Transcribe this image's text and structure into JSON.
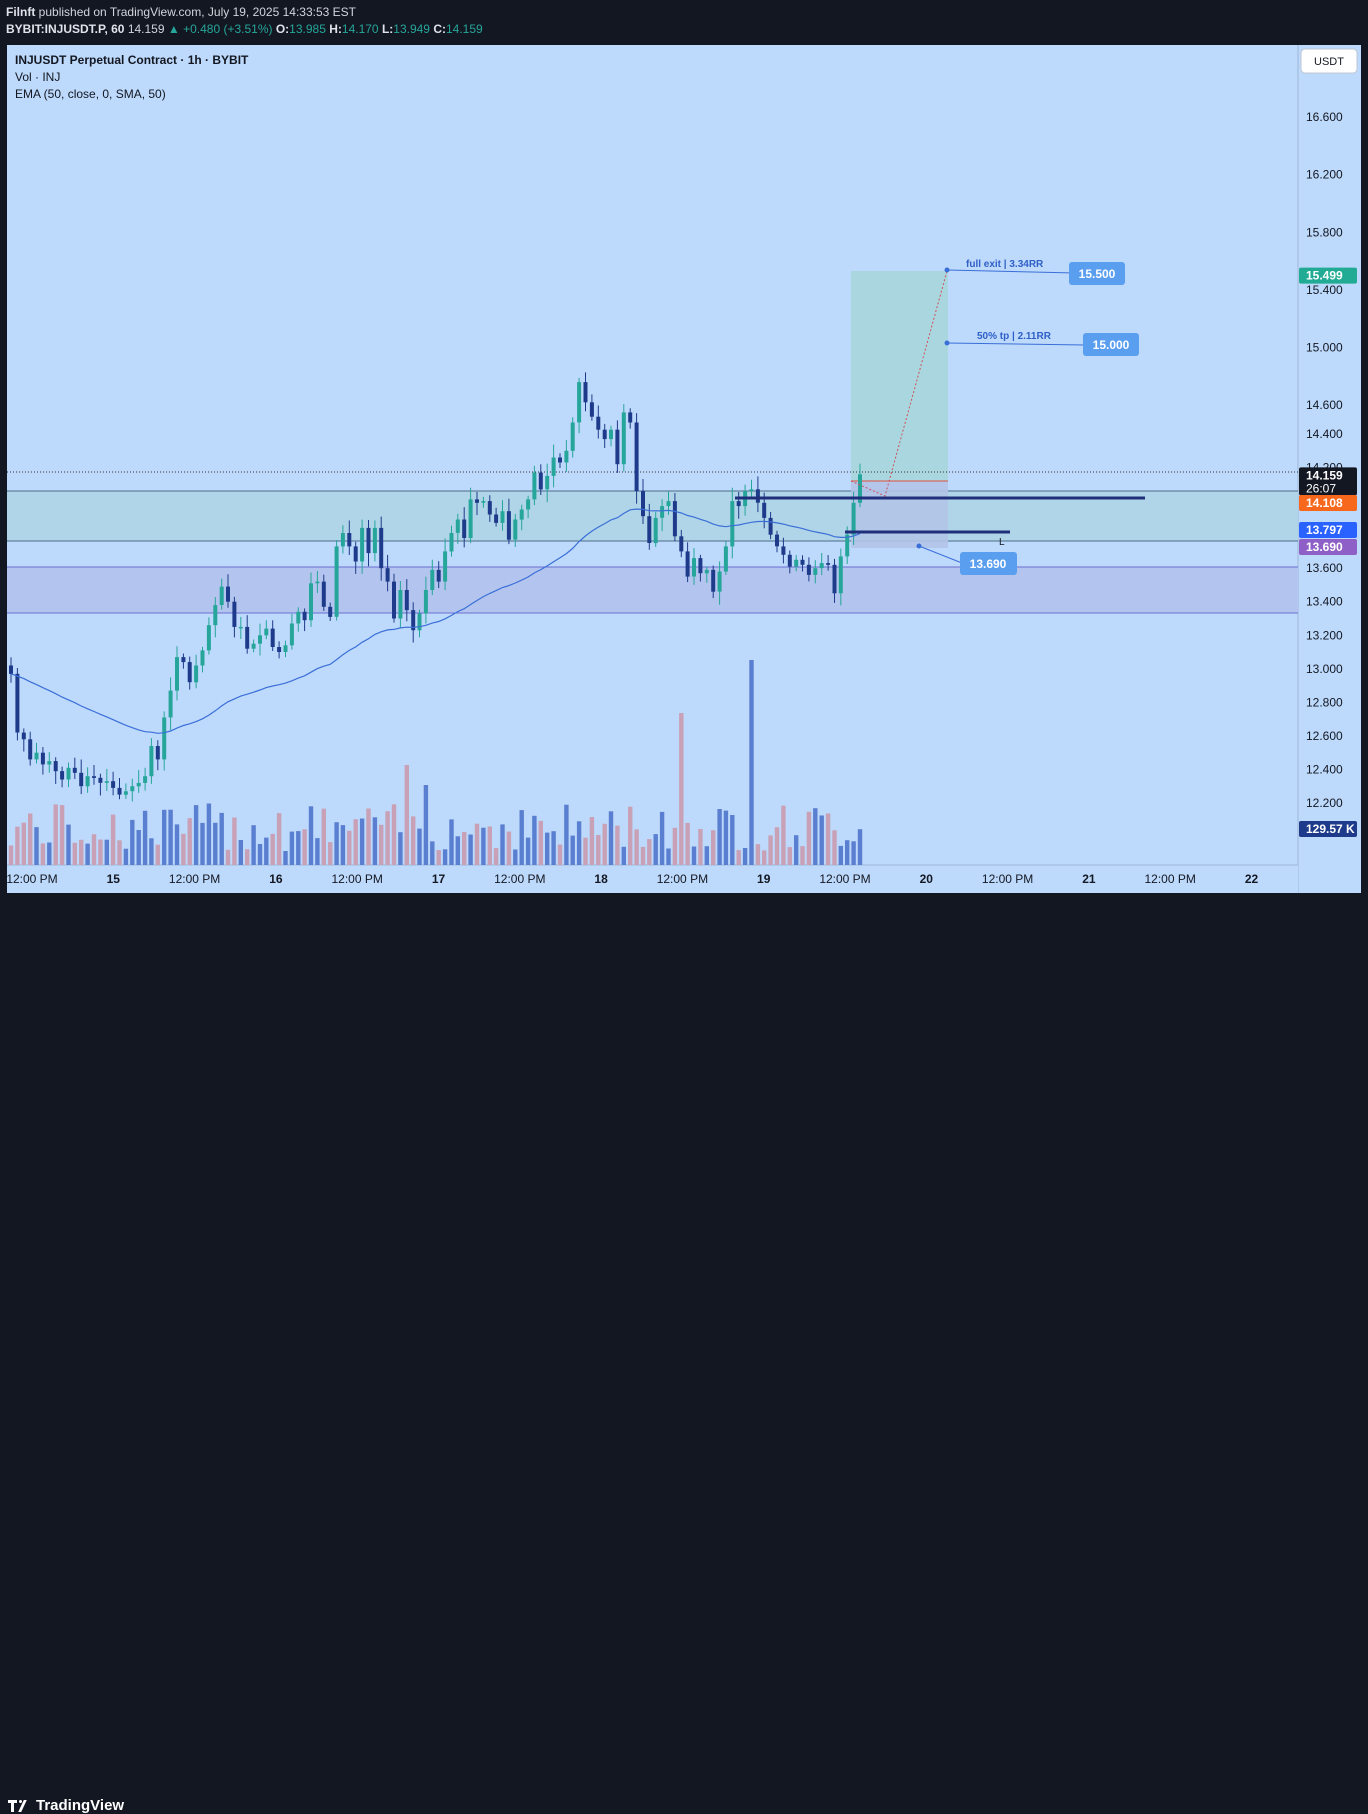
{
  "header": {
    "publisher": "Filnft",
    "published_text": "published on TradingView.com, July 19, 2025 14:33:53 EST",
    "symbol_line": "BYBIT:INJUSDT.P, 60",
    "last": "14.159",
    "change": "▲ +0.480 (+3.51%)",
    "o_label": "O:",
    "o": "13.985",
    "h_label": "H:",
    "h": "14.170",
    "l_label": "L:",
    "l": "13.949",
    "c_label": "C:",
    "c": "14.159"
  },
  "legend": {
    "title": "INJUSDT Perpetual Contract · 1h · BYBIT",
    "vol": "Vol · INJ",
    "ema": "EMA (50, close, 0, SMA, 50)"
  },
  "currency_button": "USDT",
  "footer": {
    "brand": "TradingView"
  },
  "colors": {
    "background": "#bdd9fb",
    "up": "#26a69a",
    "down": "#1e3a8a",
    "ema": "#3b6fd8",
    "vol_up": "#5b7fd0",
    "vol_down": "#c9a1b6",
    "tp_zone": "#a7d6d9",
    "sl_zone": "#b2c4e8",
    "level_line": "#1f2f7a",
    "badge": "#5a9ef0"
  },
  "chart_data": {
    "type": "candlestick",
    "y_ticks": [
      "16.600",
      "16.200",
      "15.800",
      "15.400",
      "15.000",
      "14.600",
      "14.400",
      "14.200",
      "13.600",
      "13.400",
      "13.200",
      "13.000",
      "12.800",
      "12.600",
      "12.400",
      "12.200"
    ],
    "x_ticks": [
      "12:00 PM",
      "15",
      "12:00 PM",
      "16",
      "12:00 PM",
      "17",
      "12:00 PM",
      "18",
      "12:00 PM",
      "19",
      "12:00 PM",
      "20",
      "12:00 PM",
      "21",
      "12:00 PM",
      "22"
    ],
    "price_badges": [
      {
        "value": "15.499",
        "bg": "#22ab94",
        "fg": "#ffffff"
      },
      {
        "value": "14.159",
        "sub": "26:07",
        "bg": "#131722",
        "fg": "#ffffff"
      },
      {
        "value": "14.108",
        "bg": "#f7681c",
        "fg": "#ffffff"
      },
      {
        "value": "13.797",
        "bg": "#2962ff",
        "fg": "#ffffff"
      },
      {
        "value": "13.690",
        "bg": "#8e5fc6",
        "fg": "#ffffff"
      },
      {
        "value": "129.57 K",
        "bg": "#1e3a8a",
        "fg": "#ffffff"
      }
    ],
    "annotations": [
      {
        "text": "full exit | 3.34RR",
        "badge": "15.500"
      },
      {
        "text": "50% tp | 2.11RR",
        "badge": "15.000"
      },
      {
        "text": "L",
        "badge": ""
      },
      {
        "text": "",
        "badge": "13.690"
      }
    ],
    "ohlc_close": [
      12.97,
      12.62,
      12.58,
      12.46,
      12.5,
      12.43,
      12.45,
      12.39,
      12.34,
      12.41,
      12.38,
      12.3,
      12.36,
      12.35,
      12.32,
      12.33,
      12.29,
      12.25,
      12.27,
      12.3,
      12.32,
      12.36,
      12.54,
      12.46,
      12.71,
      12.87,
      13.07,
      13.04,
      12.92,
      13.02,
      13.11,
      13.26,
      13.38,
      13.49,
      13.4,
      13.25,
      13.25,
      13.12,
      13.15,
      13.2,
      13.24,
      13.13,
      13.1,
      13.14,
      13.27,
      13.34,
      13.29,
      13.51,
      13.52,
      13.37,
      13.31,
      13.73,
      13.81,
      13.73,
      13.64,
      13.84,
      13.69,
      13.84,
      13.6,
      13.52,
      13.3,
      13.47,
      13.35,
      13.23,
      13.33,
      13.47,
      13.59,
      13.52,
      13.7,
      13.81,
      13.89,
      13.78,
      14.01,
      13.99,
      14.0,
      13.92,
      13.87,
      13.94,
      13.77,
      13.89,
      13.95,
      14.01,
      14.17,
      14.07,
      14.15,
      14.26,
      14.23,
      14.3,
      14.48,
      14.76,
      14.62,
      14.52,
      14.43,
      14.37,
      14.43,
      14.22,
      14.55,
      14.48,
      14.06,
      13.91,
      13.75,
      13.9,
      13.97,
      14.0,
      13.79,
      13.7,
      13.55,
      13.66,
      13.57,
      13.59,
      13.46,
      13.58,
      13.73,
      14.0,
      13.97,
      14.06,
      14.07,
      13.99,
      13.9,
      13.8,
      13.73,
      13.68,
      13.61,
      13.65,
      13.62,
      13.56,
      13.6,
      13.63,
      13.62,
      13.45,
      13.67,
      13.8,
      13.99,
      14.16
    ]
  }
}
